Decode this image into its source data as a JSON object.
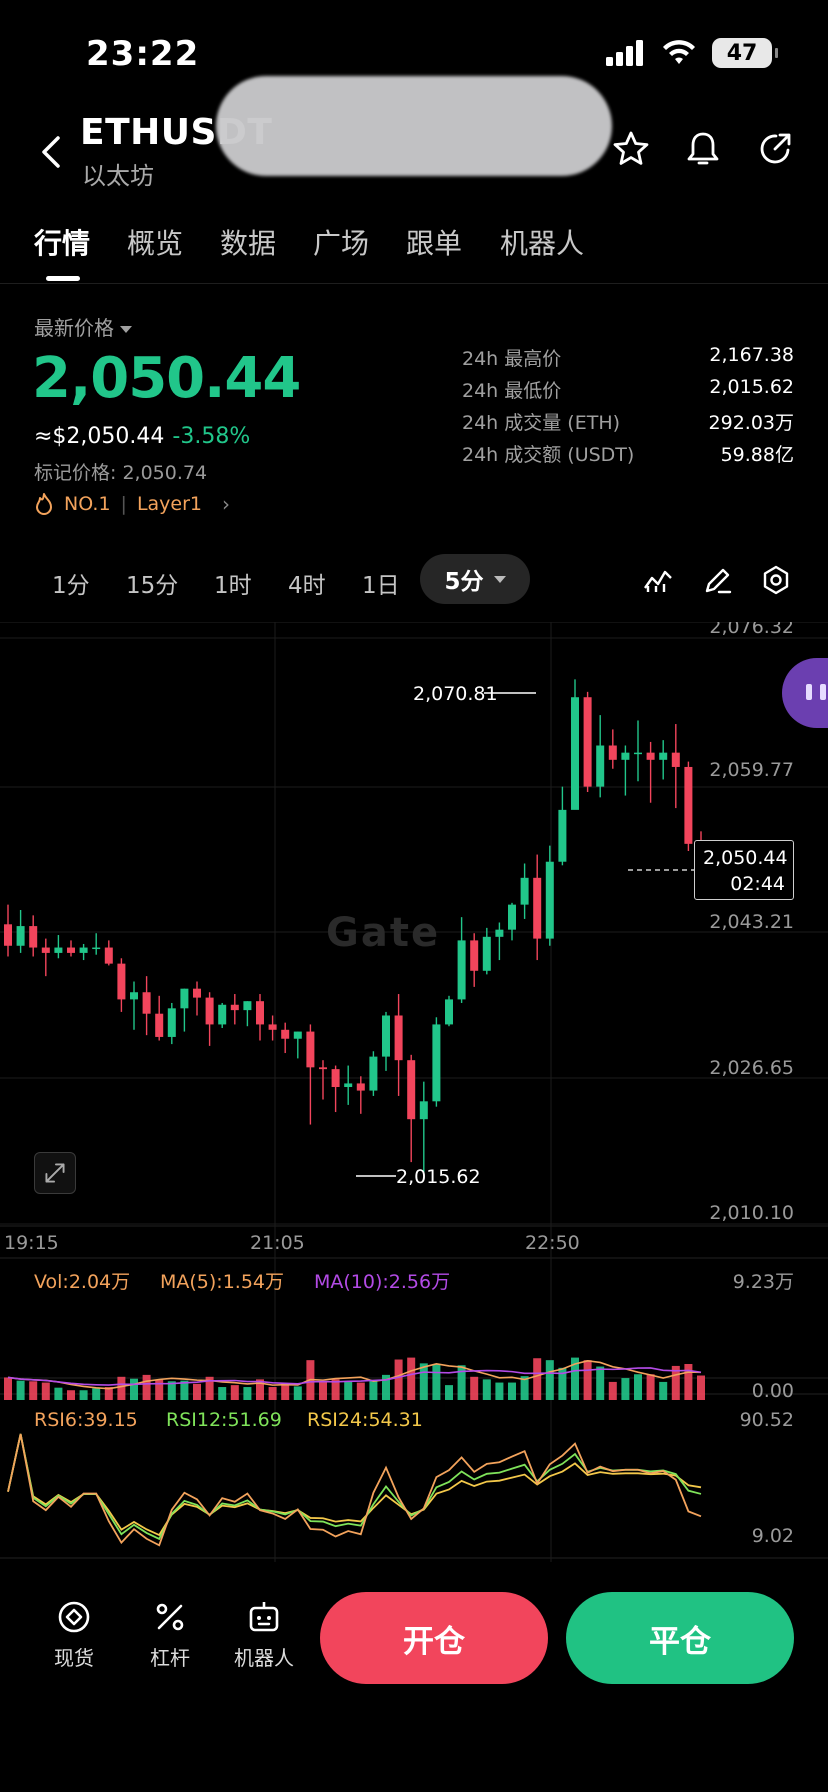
{
  "status_bar": {
    "time": "23:22",
    "battery": "47"
  },
  "header": {
    "pair": "ETHUSDT",
    "subtitle": "以太坊"
  },
  "tabs": [
    {
      "label": "行情",
      "active": true
    },
    {
      "label": "概览",
      "active": false
    },
    {
      "label": "数据",
      "active": false
    },
    {
      "label": "广场",
      "active": false
    },
    {
      "label": "跟单",
      "active": false
    },
    {
      "label": "机器人",
      "active": false
    }
  ],
  "price": {
    "label": "最新价格",
    "last": "2,050.44",
    "usd": "≈$2,050.44",
    "change": "-3.58%",
    "mark_label": "标记价格: 2,050.74",
    "rank_tag": "NO.1",
    "sector_tag": "Layer1"
  },
  "stats": [
    {
      "label": "24h 最高价",
      "value": "2,167.38"
    },
    {
      "label": "24h 最低价",
      "value": "2,015.62"
    },
    {
      "label": "24h 成交量 (ETH)",
      "value": "292.03万"
    },
    {
      "label": "24h 成交额 (USDT)",
      "value": "59.88亿"
    }
  ],
  "intervals": [
    "1分",
    "15分",
    "1时",
    "4时",
    "1日"
  ],
  "active_interval": "5分",
  "chart": {
    "price_axis": [
      "2,076.32",
      "2,059.77",
      "2,043.21",
      "2,026.65",
      "2,010.10"
    ],
    "time_axis": [
      "19:15",
      "21:05",
      "22:50"
    ],
    "high_marker": "2,070.81",
    "low_marker": "2,015.62",
    "current_price": "2,050.44",
    "countdown": "02:44",
    "watermark": "Gate",
    "volume": {
      "vol": "Vol:2.04万",
      "ma5": "MA(5):1.54万",
      "ma10": "MA(10):2.56万",
      "max": "9.23万",
      "min": "0.00"
    },
    "rsi": {
      "rsi6": "RSI6:39.15",
      "rsi12": "RSI12:51.69",
      "rsi24": "RSI24:54.31",
      "max": "90.52",
      "min": "9.02"
    }
  },
  "chart_data": {
    "type": "candlestick",
    "ylim": [
      2010.1,
      2076.32
    ],
    "candles": [
      [
        2043.4,
        2045.6,
        2041.0,
        2039.8
      ],
      [
        2041.0,
        2045.0,
        2043.2,
        2040.2
      ],
      [
        2043.2,
        2044.4,
        2040.8,
        2039.8
      ],
      [
        2040.8,
        2041.8,
        2040.2,
        2037.6
      ],
      [
        2040.2,
        2042.2,
        2040.8,
        2039.6
      ],
      [
        2040.8,
        2041.6,
        2040.2,
        2039.8
      ],
      [
        2040.2,
        2041.2,
        2040.8,
        2039.4
      ],
      [
        2040.8,
        2042.4,
        2040.8,
        2040.0
      ],
      [
        2040.8,
        2041.6,
        2039.0,
        2038.8
      ],
      [
        2039.0,
        2039.6,
        2035.0,
        2033.6
      ],
      [
        2035.0,
        2037.0,
        2035.8,
        2031.6
      ],
      [
        2035.8,
        2037.6,
        2033.4,
        2031.0
      ],
      [
        2033.4,
        2035.4,
        2030.8,
        2030.4
      ],
      [
        2030.8,
        2034.6,
        2034.0,
        2030.0
      ],
      [
        2034.0,
        2036.2,
        2036.2,
        2031.4
      ],
      [
        2036.2,
        2037.0,
        2035.2,
        2033.2
      ],
      [
        2035.2,
        2035.8,
        2032.2,
        2029.8
      ],
      [
        2032.2,
        2034.6,
        2034.4,
        2031.8
      ],
      [
        2034.4,
        2035.6,
        2033.8,
        2032.2
      ],
      [
        2033.8,
        2034.8,
        2034.8,
        2032.0
      ],
      [
        2034.8,
        2035.6,
        2032.2,
        2030.4
      ],
      [
        2032.2,
        2033.2,
        2031.6,
        2030.4
      ],
      [
        2031.6,
        2032.4,
        2030.6,
        2029.0
      ],
      [
        2030.6,
        2031.4,
        2031.4,
        2028.4
      ],
      [
        2031.4,
        2032.2,
        2027.4,
        2021.0
      ],
      [
        2027.4,
        2028.2,
        2027.2,
        2023.8
      ],
      [
        2027.2,
        2027.6,
        2025.2,
        2022.4
      ],
      [
        2025.2,
        2027.6,
        2025.6,
        2023.2
      ],
      [
        2025.6,
        2026.4,
        2024.8,
        2022.2
      ],
      [
        2024.8,
        2029.2,
        2028.6,
        2024.2
      ],
      [
        2028.6,
        2033.6,
        2033.2,
        2027.0
      ],
      [
        2033.2,
        2035.6,
        2028.2,
        2024.2
      ],
      [
        2028.2,
        2028.8,
        2021.6,
        2016.8
      ],
      [
        2021.6,
        2025.8,
        2023.6,
        2015.6
      ],
      [
        2023.6,
        2033.0,
        2032.2,
        2023.0
      ],
      [
        2032.2,
        2035.4,
        2035.0,
        2032.0
      ],
      [
        2035.0,
        2044.2,
        2041.6,
        2034.6
      ],
      [
        2041.6,
        2042.4,
        2038.2,
        2036.4
      ],
      [
        2038.2,
        2043.0,
        2042.0,
        2037.8
      ],
      [
        2042.0,
        2043.6,
        2042.8,
        2039.4
      ],
      [
        2042.8,
        2045.8,
        2045.6,
        2041.6
      ],
      [
        2045.6,
        2050.2,
        2048.6,
        2044.0
      ],
      [
        2048.6,
        2051.2,
        2041.8,
        2039.4
      ],
      [
        2041.8,
        2052.2,
        2050.4,
        2041.0
      ],
      [
        2050.4,
        2058.8,
        2056.2,
        2050.0
      ],
      [
        2056.2,
        2070.8,
        2068.8,
        2058.8
      ],
      [
        2068.8,
        2069.4,
        2058.8,
        2058.2
      ],
      [
        2058.8,
        2066.8,
        2063.4,
        2057.6
      ],
      [
        2063.4,
        2065.2,
        2061.8,
        2060.8
      ],
      [
        2061.8,
        2063.4,
        2062.6,
        2057.8
      ],
      [
        2062.6,
        2066.2,
        2062.6,
        2059.4
      ],
      [
        2062.6,
        2063.8,
        2061.8,
        2057.0
      ],
      [
        2061.8,
        2064.0,
        2062.6,
        2059.6
      ],
      [
        2062.6,
        2065.8,
        2061.0,
        2056.4
      ],
      [
        2061.0,
        2061.6,
        2052.4,
        2051.6
      ],
      [
        2052.4,
        2053.8,
        2050.4,
        2047.4
      ]
    ]
  }
}
